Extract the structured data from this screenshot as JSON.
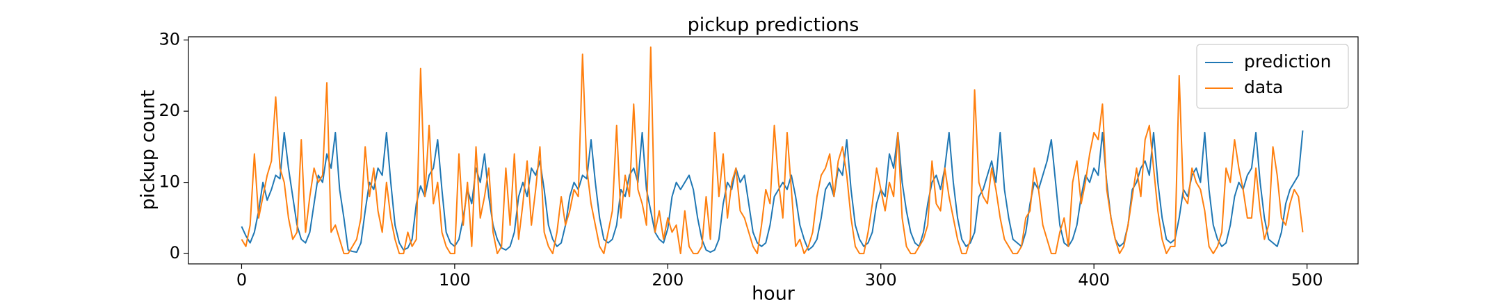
{
  "chart_data": {
    "type": "line",
    "title": "pickup predictions",
    "xlabel": "hour",
    "ylabel": "pickup count",
    "x": [
      0,
      2,
      4,
      6,
      8,
      10,
      12,
      14,
      16,
      18,
      20,
      22,
      24,
      26,
      28,
      30,
      32,
      34,
      36,
      38,
      40,
      42,
      44,
      46,
      48,
      50,
      52,
      54,
      56,
      58,
      60,
      62,
      64,
      66,
      68,
      70,
      72,
      74,
      76,
      78,
      80,
      82,
      84,
      86,
      88,
      90,
      92,
      94,
      96,
      98,
      100,
      102,
      104,
      106,
      108,
      110,
      112,
      114,
      116,
      118,
      120,
      122,
      124,
      126,
      128,
      130,
      132,
      134,
      136,
      138,
      140,
      142,
      144,
      146,
      148,
      150,
      152,
      154,
      156,
      158,
      160,
      162,
      164,
      166,
      168,
      170,
      172,
      174,
      176,
      178,
      180,
      182,
      184,
      186,
      188,
      190,
      192,
      194,
      196,
      198,
      200,
      202,
      204,
      206,
      208,
      210,
      212,
      214,
      216,
      218,
      220,
      222,
      224,
      226,
      228,
      230,
      232,
      234,
      236,
      238,
      240,
      242,
      244,
      246,
      248,
      250,
      252,
      254,
      256,
      258,
      260,
      262,
      264,
      266,
      268,
      270,
      272,
      274,
      276,
      278,
      280,
      282,
      284,
      286,
      288,
      290,
      292,
      294,
      296,
      298,
      300,
      302,
      304,
      306,
      308,
      310,
      312,
      314,
      316,
      318,
      320,
      322,
      324,
      326,
      328,
      330,
      332,
      334,
      336,
      338,
      340,
      342,
      344,
      346,
      348,
      350,
      352,
      354,
      356,
      358,
      360,
      362,
      364,
      366,
      368,
      370,
      372,
      374,
      376,
      378,
      380,
      382,
      384,
      386,
      388,
      390,
      392,
      394,
      396,
      398,
      400,
      402,
      404,
      406,
      408,
      410,
      412,
      414,
      416,
      418,
      420,
      422,
      424,
      426,
      428,
      430,
      432,
      434,
      436,
      438,
      440,
      442,
      444,
      446,
      448,
      450,
      452,
      454,
      456,
      458,
      460,
      462,
      464,
      466,
      468,
      470,
      472,
      474,
      476,
      478,
      480,
      482,
      484,
      486,
      488,
      490,
      492,
      494,
      496,
      498
    ],
    "series": [
      {
        "name": "prediction",
        "color": "#1f77b4",
        "values": [
          3.8,
          2.5,
          1.5,
          3,
          6,
          10,
          7.5,
          9,
          11,
          10.5,
          17,
          12,
          8,
          4,
          2,
          1.5,
          3,
          7,
          11,
          10,
          14,
          12,
          17,
          9,
          5,
          0.5,
          0.3,
          0.2,
          1.5,
          6,
          10,
          9,
          12,
          11,
          17,
          10,
          4,
          1.5,
          0.5,
          0.8,
          2,
          7,
          9.5,
          8,
          11,
          12,
          16,
          9,
          3,
          1.5,
          1,
          2,
          5,
          9,
          7,
          12,
          10,
          14,
          8,
          4,
          2,
          0.8,
          0.5,
          1,
          3,
          8,
          10,
          8,
          12,
          11,
          13,
          9,
          4,
          2,
          1,
          1.5,
          4,
          8,
          10,
          9,
          11,
          10.5,
          16,
          10,
          5,
          2,
          1.5,
          2,
          4,
          9,
          8,
          11,
          12,
          10,
          17,
          9,
          6,
          3,
          2,
          1.5,
          3.5,
          8,
          10,
          9,
          10,
          11,
          9,
          5,
          2,
          0.5,
          0.2,
          0.5,
          2,
          7,
          10,
          9,
          12,
          10,
          11,
          7,
          3,
          1.5,
          1,
          1.5,
          4,
          8,
          9,
          10,
          9,
          11,
          8,
          4,
          2,
          0.5,
          1,
          2,
          5,
          9,
          10,
          8,
          12,
          11,
          16,
          9,
          4,
          2,
          1,
          1.5,
          3,
          7,
          9,
          8,
          14,
          12,
          17,
          10,
          6,
          3,
          1.5,
          1,
          3,
          7,
          10,
          11,
          9,
          12,
          17,
          10,
          5,
          2,
          1,
          1.5,
          3,
          8,
          9,
          11,
          13,
          10,
          17,
          9,
          5,
          2,
          1.5,
          1,
          3,
          7,
          10,
          9,
          11,
          13,
          16,
          10,
          4,
          1.5,
          1,
          2,
          4,
          8,
          11,
          10,
          12,
          11,
          17,
          10,
          5,
          2,
          1,
          1.5,
          4,
          9,
          10,
          12,
          13,
          11,
          17,
          10,
          5,
          2,
          1.5,
          2,
          5,
          9,
          8,
          11,
          12,
          10,
          17,
          9,
          4,
          2,
          1,
          1.5,
          4,
          8,
          10,
          9,
          11,
          12,
          17,
          10,
          5,
          2,
          1.5,
          1,
          3,
          7,
          9,
          10,
          11,
          17.3
        ]
      },
      {
        "name": "data",
        "color": "#ff7f0e",
        "values": [
          2,
          1,
          4,
          14,
          5,
          8,
          11,
          13,
          22,
          12,
          10,
          5,
          2,
          3,
          16,
          3,
          8,
          12,
          10,
          11,
          24,
          3,
          4,
          2,
          0,
          0,
          1,
          2,
          5,
          15,
          8,
          12,
          6,
          3,
          10,
          5,
          2,
          0,
          0,
          3,
          1,
          2,
          26,
          8,
          18,
          7,
          10,
          3,
          1,
          0,
          0,
          14,
          4,
          10,
          1,
          15,
          5,
          8,
          12,
          3,
          0,
          1,
          12,
          4,
          14,
          2,
          7,
          13,
          4,
          9,
          15,
          3,
          1,
          0,
          3,
          8,
          4,
          6,
          9,
          8,
          28,
          12,
          7,
          4,
          1,
          0,
          3,
          6,
          18,
          5,
          11,
          8,
          21,
          9,
          7,
          4,
          29,
          3,
          6,
          2,
          5,
          3,
          4,
          0,
          6,
          1,
          0,
          0,
          1,
          8,
          2,
          17,
          8,
          14,
          5,
          10,
          12,
          6,
          5,
          3,
          1,
          0,
          4,
          9,
          7,
          18,
          10,
          5,
          17,
          9,
          1,
          2,
          0,
          1,
          3,
          8,
          11,
          12,
          14,
          8,
          13,
          15,
          11,
          5,
          1,
          0,
          0,
          3,
          7,
          12,
          9,
          6,
          10,
          8,
          17,
          5,
          1,
          0,
          0,
          1,
          2,
          4,
          13,
          7,
          6,
          12,
          8,
          5,
          2,
          0,
          0,
          2,
          23,
          10,
          8,
          7,
          12,
          9,
          5,
          2,
          1,
          0,
          0,
          1,
          5,
          6,
          12,
          9,
          4,
          2,
          0,
          0,
          3,
          5,
          1,
          10,
          13,
          7,
          10,
          14,
          17,
          16,
          21,
          9,
          5,
          2,
          0,
          1,
          4,
          8,
          12,
          8,
          16,
          18,
          12,
          6,
          2,
          0,
          1,
          1,
          25,
          8,
          7,
          12,
          10,
          9,
          6,
          1,
          0,
          1,
          3,
          12,
          10,
          16,
          12,
          9,
          5,
          5,
          12,
          6,
          2,
          4,
          15,
          11,
          5,
          4,
          7,
          9,
          8,
          3
        ]
      }
    ],
    "xlim": [
      -24.95,
      523.95
    ],
    "xticks": [
      0,
      100,
      200,
      300,
      400,
      500
    ],
    "ylim": [
      -1.45,
      30.45
    ],
    "yticks": [
      0,
      10,
      20,
      30
    ],
    "grid": false,
    "legend": "upper right"
  }
}
